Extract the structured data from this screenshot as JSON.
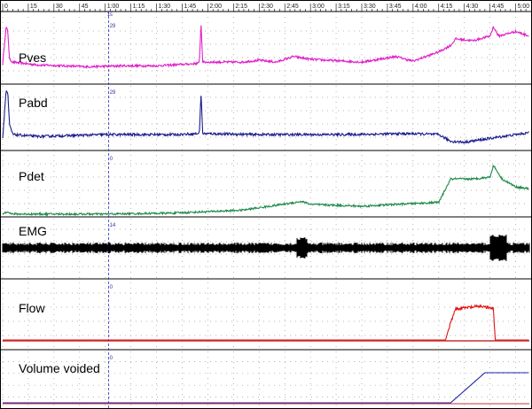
{
  "time_axis": {
    "tick_labels": [
      "0",
      "15",
      "30",
      "45",
      "1:00",
      "1:15",
      "1:30",
      "1:45",
      "2:00",
      "2:15",
      "2:30",
      "2:45",
      "3:00",
      "3:15",
      "3:30",
      "3:45",
      "4:00",
      "4:15",
      "4:30",
      "4:45",
      "5:00"
    ]
  },
  "marker": {
    "label": "1s",
    "time_s": 62
  },
  "channels": [
    {
      "id": "pves",
      "label": "Pves"
    },
    {
      "id": "pabd",
      "label": "Pabd"
    },
    {
      "id": "pdet",
      "label": "Pdet"
    },
    {
      "id": "emg",
      "label": "EMG"
    },
    {
      "id": "flow",
      "label": "Flow"
    },
    {
      "id": "vol",
      "label": "Volume voided"
    }
  ],
  "panel_scale_marks": [
    "29",
    "29",
    "0",
    "14",
    "0",
    "0"
  ],
  "colors": {
    "pves": "#e020c8",
    "pabd": "#1c1c8c",
    "pdet": "#1e8a4a",
    "emg": "#000000",
    "flow": "#e01010",
    "vol": "#2020b0",
    "baseline_red": "#c83030",
    "dots": "#9a9a9a",
    "marker": "#3030c0"
  },
  "chart_data": {
    "type": "line",
    "title": "",
    "xlabel": "",
    "ylabel": "",
    "x_unit": "min:sec",
    "xlim_seconds": [
      0,
      308
    ],
    "series": [
      {
        "name": "Pves",
        "points": [
          [
            0,
            15
          ],
          [
            2,
            55
          ],
          [
            3,
            50
          ],
          [
            4,
            20
          ],
          [
            6,
            17
          ],
          [
            20,
            14
          ],
          [
            50,
            12
          ],
          [
            70,
            13
          ],
          [
            90,
            13
          ],
          [
            110,
            15
          ],
          [
            115,
            16
          ],
          [
            116,
            58
          ],
          [
            117,
            17
          ],
          [
            140,
            17
          ],
          [
            150,
            19
          ],
          [
            160,
            17
          ],
          [
            170,
            23
          ],
          [
            180,
            20
          ],
          [
            210,
            17
          ],
          [
            230,
            23
          ],
          [
            240,
            18
          ],
          [
            255,
            28
          ],
          [
            262,
            35
          ],
          [
            265,
            42
          ],
          [
            275,
            40
          ],
          [
            285,
            45
          ],
          [
            287,
            55
          ],
          [
            290,
            45
          ],
          [
            300,
            50
          ],
          [
            308,
            45
          ]
        ]
      },
      {
        "name": "Pabd",
        "points": [
          [
            0,
            8
          ],
          [
            2,
            58
          ],
          [
            3,
            55
          ],
          [
            4,
            22
          ],
          [
            6,
            12
          ],
          [
            20,
            10
          ],
          [
            60,
            12
          ],
          [
            100,
            12
          ],
          [
            115,
            13
          ],
          [
            116,
            55
          ],
          [
            117,
            13
          ],
          [
            150,
            12
          ],
          [
            200,
            12
          ],
          [
            240,
            13
          ],
          [
            255,
            12
          ],
          [
            262,
            5
          ],
          [
            270,
            4
          ],
          [
            285,
            8
          ],
          [
            300,
            12
          ],
          [
            308,
            14
          ]
        ]
      },
      {
        "name": "Pdet",
        "points": [
          [
            0,
            2
          ],
          [
            3,
            5
          ],
          [
            5,
            2
          ],
          [
            60,
            2
          ],
          [
            100,
            3
          ],
          [
            140,
            6
          ],
          [
            160,
            11
          ],
          [
            175,
            15
          ],
          [
            180,
            12
          ],
          [
            210,
            10
          ],
          [
            230,
            12
          ],
          [
            255,
            14
          ],
          [
            262,
            38
          ],
          [
            275,
            38
          ],
          [
            285,
            40
          ],
          [
            287,
            52
          ],
          [
            292,
            38
          ],
          [
            300,
            30
          ],
          [
            308,
            28
          ]
        ]
      },
      {
        "name": "EMG",
        "points": [
          [
            0,
            0
          ],
          [
            175,
            0
          ],
          [
            290,
            0
          ],
          [
            308,
            0
          ]
        ]
      },
      {
        "name": "Flow",
        "points": [
          [
            0,
            0
          ],
          [
            259,
            0
          ],
          [
            262,
            7
          ],
          [
            265,
            12
          ],
          [
            280,
            13
          ],
          [
            287,
            12
          ],
          [
            288,
            0
          ],
          [
            308,
            0
          ]
        ]
      },
      {
        "name": "Volume voided",
        "points": [
          [
            0,
            0
          ],
          [
            262,
            0
          ],
          [
            282,
            100
          ],
          [
            290,
            100
          ],
          [
            308,
            100
          ]
        ]
      }
    ]
  }
}
